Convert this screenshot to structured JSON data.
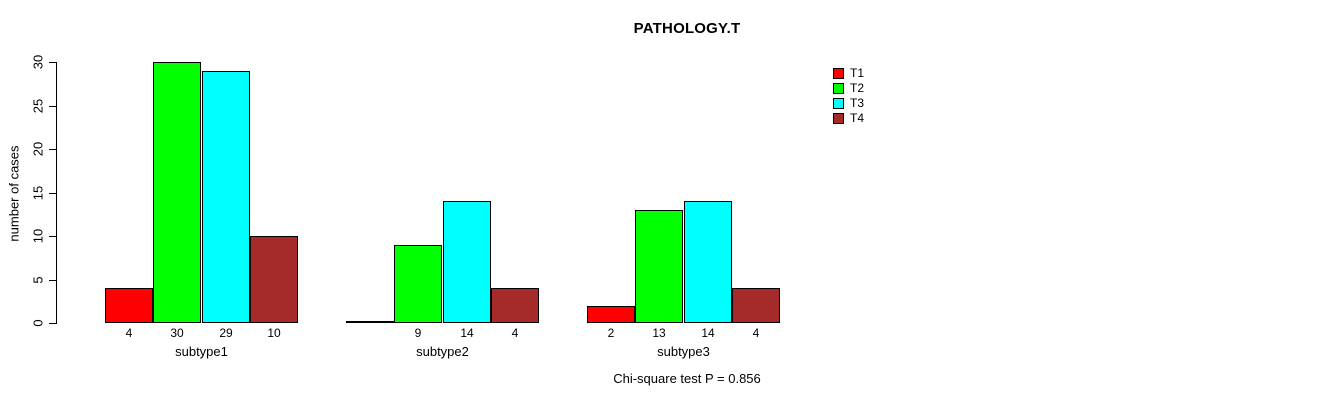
{
  "chart_data": {
    "type": "bar",
    "title": "PATHOLOGY.T",
    "ylabel": "number of cases",
    "xlabel": "",
    "annotation": "Chi-square test P = 0.856",
    "categories": [
      "subtype1",
      "subtype2",
      "subtype3"
    ],
    "series": [
      {
        "name": "T1",
        "color": "#FF0000",
        "values": [
          4,
          0,
          2
        ]
      },
      {
        "name": "T2",
        "color": "#00FF00",
        "values": [
          30,
          9,
          13
        ]
      },
      {
        "name": "T3",
        "color": "#00FFFF",
        "values": [
          29,
          14,
          14
        ]
      },
      {
        "name": "T4",
        "color": "#A52A2A",
        "values": [
          10,
          4,
          4
        ]
      }
    ],
    "value_labels": [
      [
        "4",
        "30",
        "29",
        "10"
      ],
      [
        "",
        "9",
        "14",
        "4"
      ],
      [
        "2",
        "13",
        "14",
        "4"
      ]
    ],
    "yticks": [
      0,
      5,
      10,
      15,
      20,
      25,
      30
    ],
    "ylim": [
      0,
      30
    ],
    "grid": false,
    "legend_position": "top-right",
    "bar_border_color": "#000000",
    "background_color": "#FFFFFF"
  }
}
